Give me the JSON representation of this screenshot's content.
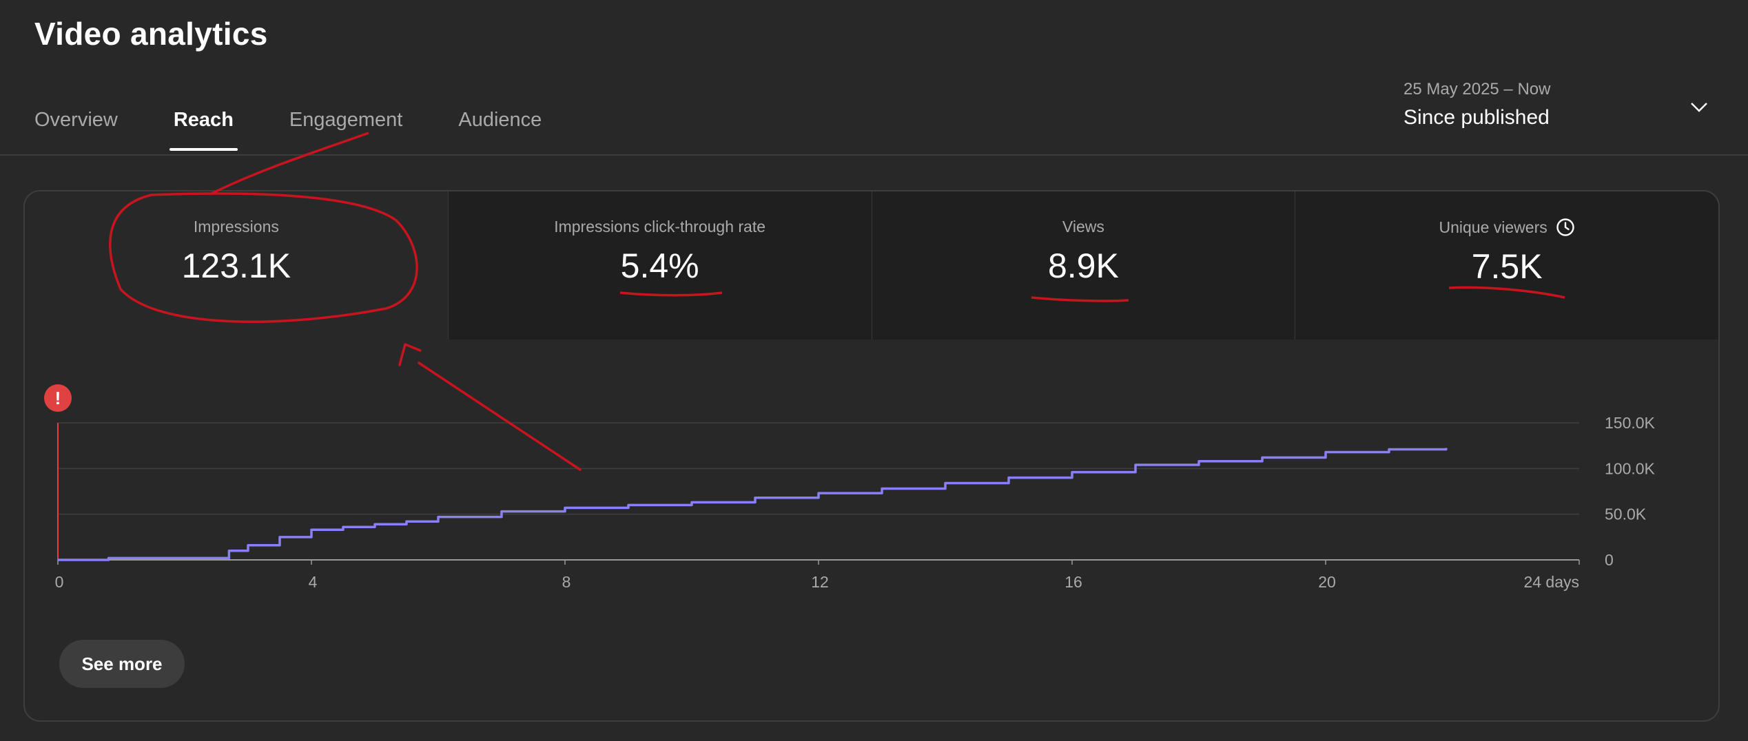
{
  "page": {
    "title": "Video analytics"
  },
  "tabs": [
    {
      "label": "Overview",
      "active": false
    },
    {
      "label": "Reach",
      "active": true
    },
    {
      "label": "Engagement",
      "active": false
    },
    {
      "label": "Audience",
      "active": false
    }
  ],
  "date_range": {
    "range": "25 May 2025 – Now",
    "label": "Since published"
  },
  "metrics": [
    {
      "label": "Impressions",
      "value": "123.1K",
      "selected": true
    },
    {
      "label": "Impressions click-through rate",
      "value": "5.4%"
    },
    {
      "label": "Views",
      "value": "8.9K"
    },
    {
      "label": "Unique viewers",
      "value": "7.5K",
      "icon": "clock-icon"
    }
  ],
  "see_more_label": "See more",
  "chart_data": {
    "type": "line",
    "series": [
      {
        "color": "#8a80f5",
        "x": [
          0,
          0.8,
          2,
          2.5,
          2.7,
          3,
          3.5,
          4,
          4.5,
          5,
          5.5,
          6,
          7,
          8,
          9,
          10,
          11,
          12,
          13,
          14,
          15,
          16,
          17,
          18,
          19,
          20,
          21,
          21.9
        ],
        "y": [
          0,
          2,
          2,
          2,
          10,
          16,
          25,
          33,
          36,
          39,
          42,
          47,
          53,
          57,
          60,
          63,
          68,
          73,
          78,
          84,
          90,
          96,
          104,
          108,
          112,
          118,
          121,
          122.5
        ]
      }
    ],
    "x_ticks": [
      "0",
      "4",
      "8",
      "12",
      "16",
      "20",
      "24 days"
    ],
    "x_tick_values": [
      0,
      4,
      8,
      12,
      16,
      20,
      24
    ],
    "xlim": [
      0,
      24
    ],
    "y_ticks": [
      "0",
      "50.0K",
      "100.0K",
      "150.0K"
    ],
    "y_tick_values": [
      0,
      50,
      100,
      150
    ],
    "ylim": [
      0,
      150
    ],
    "grid": true,
    "marker": {
      "x": 0,
      "label": "!",
      "color": "#e04141"
    }
  }
}
